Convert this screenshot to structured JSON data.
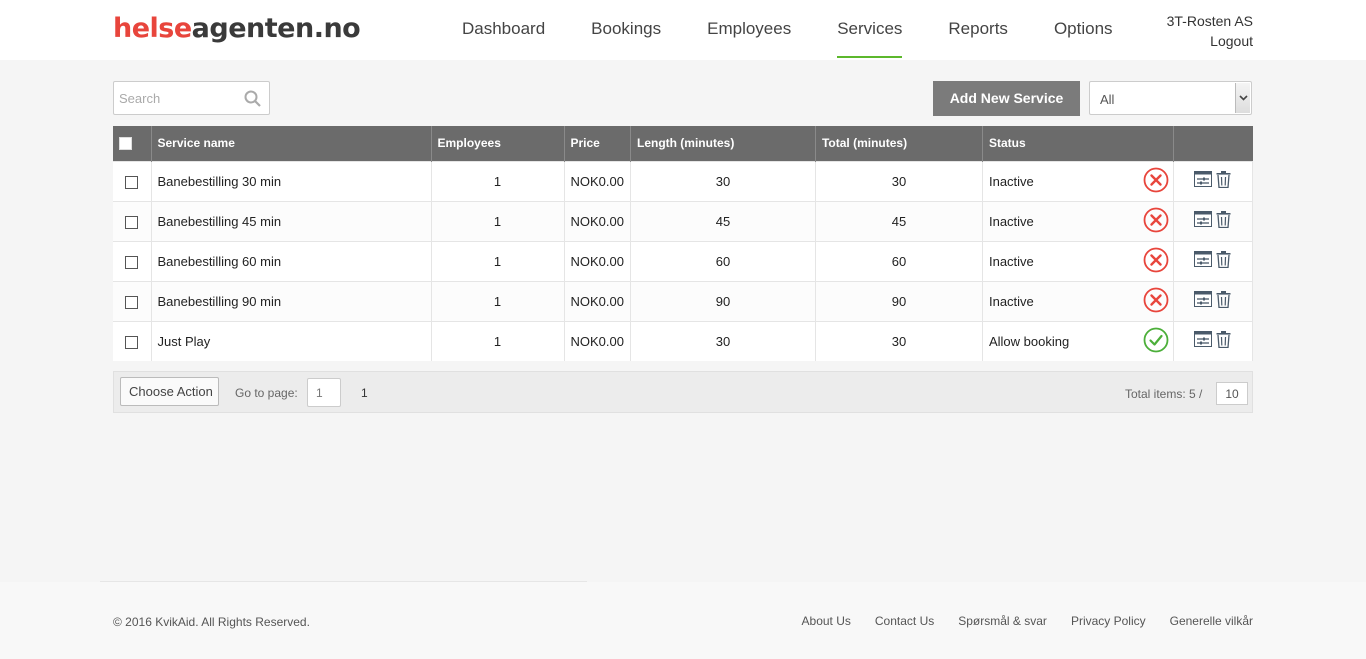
{
  "header": {
    "logo_part1": "helse",
    "logo_part2": "agenten.no",
    "nav": [
      {
        "label": "Dashboard"
      },
      {
        "label": "Bookings"
      },
      {
        "label": "Employees"
      },
      {
        "label": "Services",
        "active": true
      },
      {
        "label": "Reports"
      },
      {
        "label": "Options"
      }
    ],
    "company": "3T-Rosten AS",
    "logout": "Logout"
  },
  "toolbar": {
    "search_placeholder": "Search",
    "add_label": "Add New Service",
    "filter_value": "All"
  },
  "table": {
    "columns": [
      "Service name",
      "Employees",
      "Price",
      "Length (minutes)",
      "Total (minutes)",
      "Status"
    ],
    "rows": [
      {
        "name": "Banebestilling 30 min",
        "employees": "1",
        "price": "NOK0.00",
        "length": "30",
        "total": "30",
        "status": "Inactive",
        "state": "inactive"
      },
      {
        "name": "Banebestilling 45 min",
        "employees": "1",
        "price": "NOK0.00",
        "length": "45",
        "total": "45",
        "status": "Inactive",
        "state": "inactive"
      },
      {
        "name": "Banebestilling 60 min",
        "employees": "1",
        "price": "NOK0.00",
        "length": "60",
        "total": "60",
        "status": "Inactive",
        "state": "inactive"
      },
      {
        "name": "Banebestilling 90 min",
        "employees": "1",
        "price": "NOK0.00",
        "length": "90",
        "total": "90",
        "status": "Inactive",
        "state": "inactive"
      },
      {
        "name": "Just Play",
        "employees": "1",
        "price": "NOK0.00",
        "length": "30",
        "total": "30",
        "status": "Allow booking",
        "state": "active"
      }
    ]
  },
  "pager": {
    "choose_action": "Choose Action",
    "goto_label": "Go to page:",
    "goto_value": "1",
    "page": "1",
    "total_label": "Total items: 5 /",
    "per_page": "10"
  },
  "footer": {
    "copyright": "© 2016 KvikAid. All Rights Reserved.",
    "links": [
      "About Us",
      "Contact Us",
      "Spørsmål & svar",
      "Privacy Policy",
      "Generelle vilkår"
    ]
  },
  "colors": {
    "brand_red": "#e8453c",
    "nav_underline": "#5cb82c",
    "status_inactive": "#e8453c",
    "status_active": "#4caf3a"
  }
}
